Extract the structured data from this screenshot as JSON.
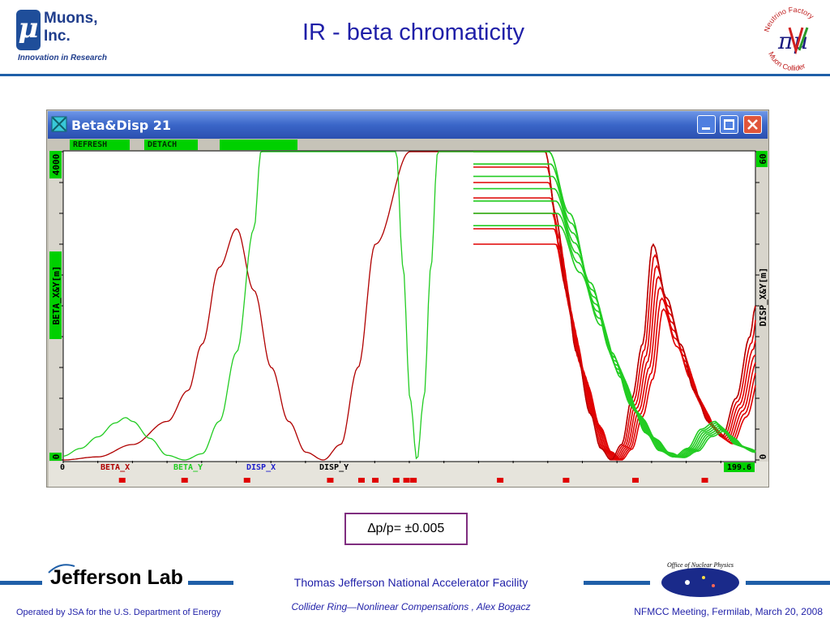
{
  "header": {
    "logo_mu": "μ",
    "logo_name_line1": "Muons,",
    "logo_name_line2": "Inc.",
    "logo_tagline": "Innovation in Research",
    "title": "IR - beta chromaticity",
    "nf_logo_top": "Neutrino Factory",
    "nf_logo_bottom": "Muon Collider",
    "nf_logo_symbol": "πμ"
  },
  "window": {
    "title": "Beta&Disp 21",
    "buttons": [
      "REFRESH",
      "DETACH"
    ],
    "titlebar_icons": [
      "minimize-icon",
      "maximize-icon",
      "close-icon"
    ],
    "colors": {
      "titlebar": "#3a66c8",
      "plot_bg": "#ffffff",
      "beta_x": "#b00000",
      "beta_y": "#22cc22",
      "disp_x": "#1f1fcc",
      "disp_y": "#000000",
      "element_marker": "#e00000",
      "green_button": "#00d000"
    }
  },
  "chart_data": {
    "type": "line",
    "title": "",
    "xlabel": "",
    "ylabel_left": "BETA_X&Y[m]",
    "ylabel_right": "DISP_X&Y[m]",
    "xlim": [
      0,
      199.6
    ],
    "x_tick_labels": [
      "0",
      "199.6"
    ],
    "ylim_left": [
      0,
      4000
    ],
    "y_left_tick_labels": [
      "0",
      "4000"
    ],
    "ylim_right": [
      0,
      60
    ],
    "y_right_tick_labels": [
      "0",
      "60"
    ],
    "legend": [
      "BETA_X",
      "BETA_Y",
      "DISP_X",
      "DISP_Y"
    ],
    "legend_placement": "bottom",
    "series": [
      {
        "name": "BETA_X",
        "axis": "left",
        "x": [
          0,
          10,
          20,
          30,
          36,
          40,
          45,
          50,
          55,
          60,
          65,
          70,
          75,
          80,
          85,
          90,
          100,
          110,
          120,
          126,
          134,
          139,
          142,
          145,
          148,
          152,
          155,
          158,
          161,
          164,
          167,
          170,
          174,
          178,
          182,
          186,
          190,
          194,
          198,
          199.6
        ],
        "values": [
          0,
          40,
          200,
          500,
          900,
          1500,
          2500,
          3000,
          2200,
          1200,
          500,
          100,
          0,
          200,
          1200,
          2800,
          4000,
          4000,
          4000,
          4000,
          4000,
          4000,
          3200,
          2200,
          1400,
          600,
          150,
          0,
          200,
          800,
          1500,
          2800,
          2100,
          1500,
          900,
          500,
          300,
          800,
          1600,
          2000
        ]
      },
      {
        "name": "BETA_Y",
        "axis": "left",
        "x": [
          0,
          5,
          10,
          15,
          18,
          20,
          25,
          30,
          35,
          40,
          45,
          50,
          55,
          57,
          60,
          70,
          90,
          96,
          98,
          100,
          102,
          104,
          106,
          108,
          110,
          120,
          130,
          134,
          140,
          146,
          152,
          158,
          164,
          168,
          172,
          176,
          180,
          184,
          188,
          190,
          194,
          199.6
        ],
        "values": [
          50,
          150,
          300,
          480,
          550,
          500,
          280,
          60,
          0,
          80,
          500,
          1400,
          3000,
          4000,
          4000,
          4000,
          4000,
          4000,
          2500,
          800,
          0,
          800,
          2500,
          4000,
          4000,
          4000,
          4000,
          4000,
          4000,
          3200,
          2300,
          1400,
          700,
          350,
          120,
          40,
          150,
          400,
          500,
          380,
          200,
          100
        ]
      },
      {
        "name": "DISP_X",
        "axis": "right",
        "x": [
          0,
          199.6
        ],
        "values": [
          0,
          0
        ]
      },
      {
        "name": "DISP_Y",
        "axis": "right",
        "x": [
          0,
          199.6
        ],
        "values": [
          0,
          0
        ]
      }
    ],
    "element_markers_x": [
      17,
      35,
      53,
      77,
      86,
      90,
      96,
      99,
      101,
      126,
      145,
      165,
      185
    ]
  },
  "annotation": {
    "dp": "∆p/p= ±0.005"
  },
  "footer": {
    "jlab": "Jefferson Lab",
    "center_title": "Thomas Jefferson National Accelerator Facility",
    "subtitle": "Collider Ring—Nonlinear Compensations , Alex Bogacz",
    "left_note": "Operated by JSA for the U.S. Department of Energy",
    "right_note": "NFMCC Meeting, Fermilab, March 20, 2008",
    "onp_text": "Office of Nuclear Physics"
  }
}
